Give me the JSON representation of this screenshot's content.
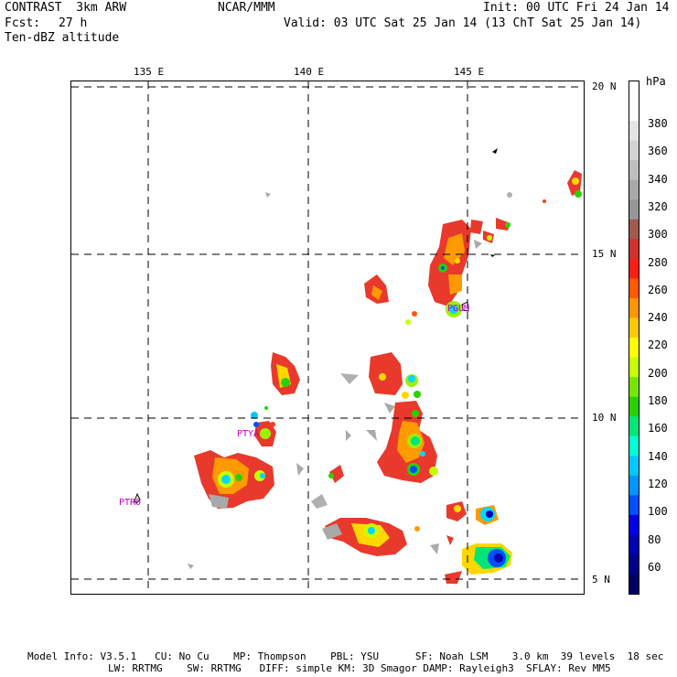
{
  "header": {
    "model_name": "CONTRAST  3km ARW",
    "org": "NCAR/MMM",
    "init": "Init: 00 UTC Fri 24 Jan 14",
    "fcst_label": "Fcst:",
    "fcst_value": "27 h",
    "valid": "Valid: 03 UTC Sat 25 Jan 14 (13 ChT Sat 25 Jan 14)",
    "field": "Ten-dBZ altitude"
  },
  "map": {
    "lon_labels": [
      "135 E",
      "140 E",
      "145 E"
    ],
    "lat_labels": [
      "20 N",
      "15 N",
      "10 N",
      "5 N"
    ],
    "stations": [
      "PTRO",
      "PTYA",
      "PGUM"
    ],
    "unit": "hPa"
  },
  "colorbar": {
    "labels": [
      "380",
      "360",
      "340",
      "320",
      "300",
      "280",
      "260",
      "240",
      "220",
      "200",
      "180",
      "160",
      "140",
      "120",
      "100",
      "80",
      "60"
    ],
    "colors": [
      "#ffffff",
      "#ffffff",
      "#e4e4e4",
      "#d2d2d2",
      "#bebebe",
      "#a9a9a9",
      "#969696",
      "#a05a50",
      "#d2322d",
      "#ff1e14",
      "#ff5a00",
      "#ff9600",
      "#ffc800",
      "#ffff00",
      "#c8ff00",
      "#78e600",
      "#28d200",
      "#00e678",
      "#00ffd2",
      "#00c8ff",
      "#0096ff",
      "#0050ff",
      "#0000e6",
      "#0000b4",
      "#00008c",
      "#000064"
    ]
  },
  "footer": {
    "line1": "Model Info: V3.5.1   CU: No Cu    MP: Thompson    PBL: YSU      SF: Noah LSM    3.0 km  39 levels  18 sec",
    "line2": "LW: RRTMG    SW: RRTMG   DIFF: simple KM: 3D Smagor DAMP: Rayleigh3  SFLAY: Rev MM5"
  }
}
